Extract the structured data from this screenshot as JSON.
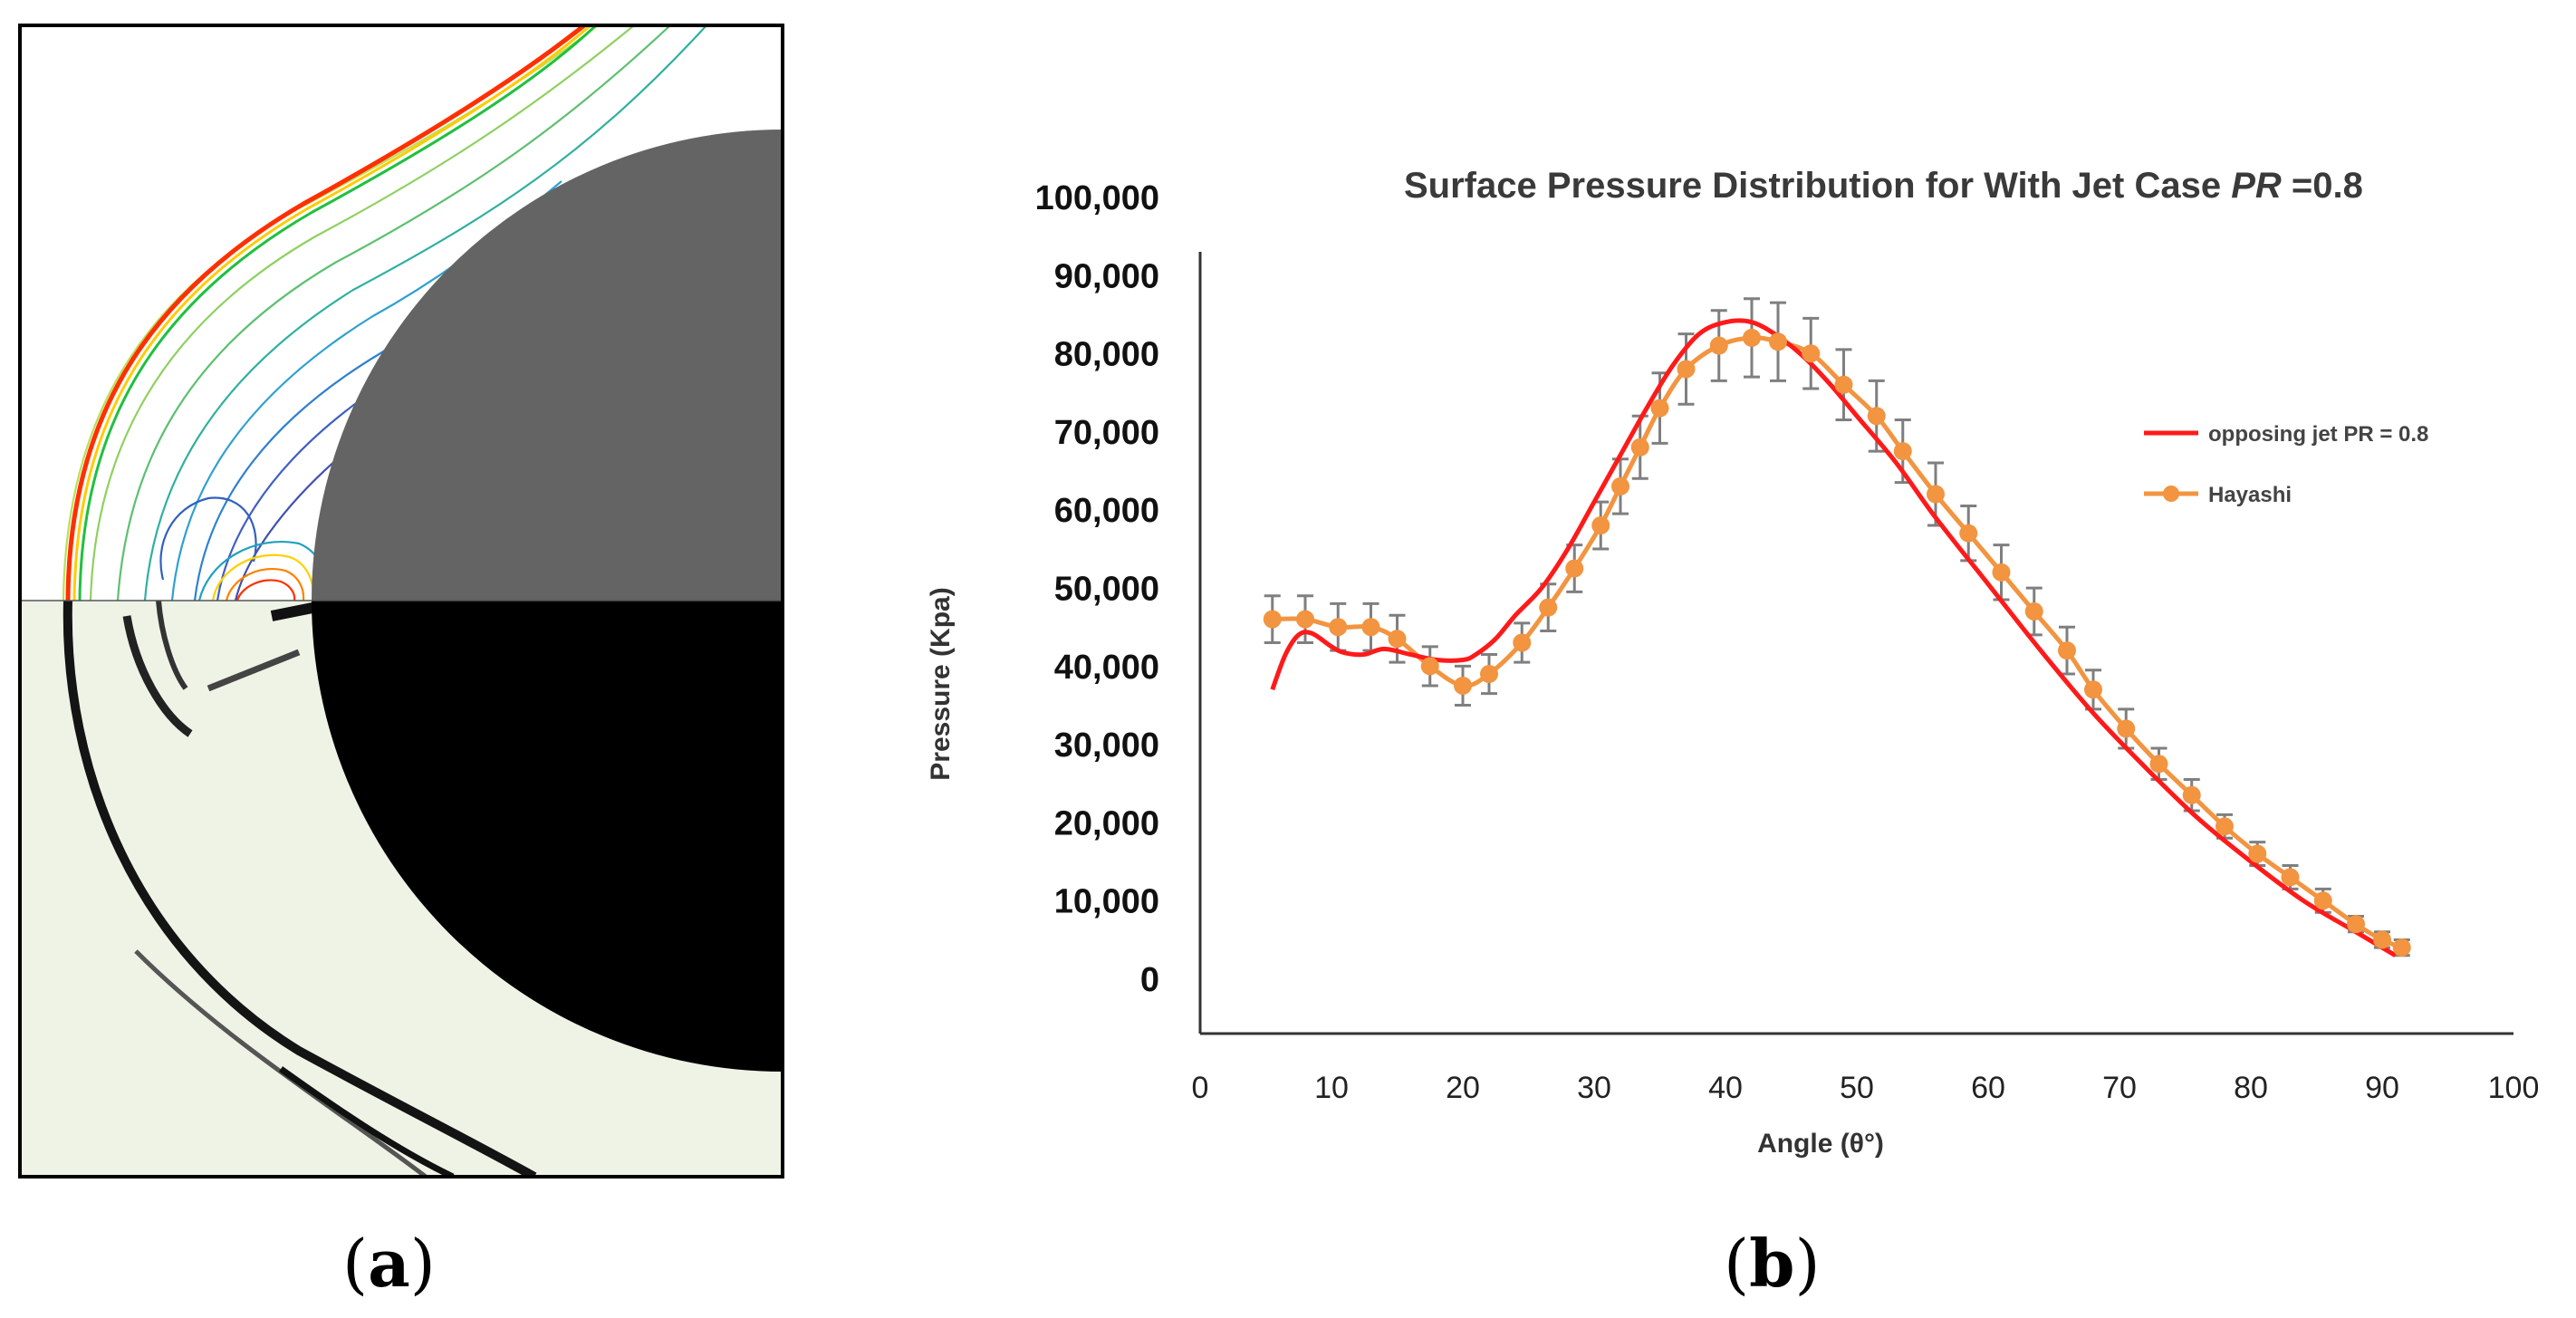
{
  "panels": {
    "a_label": "a",
    "b_label": "b"
  },
  "colors": {
    "cfd_line": "#ff1a1a",
    "hayashi": "#f29440",
    "error_bar": "#7f7f7f",
    "body_gray": "#646464",
    "body_black": "#000000"
  },
  "chart_data": {
    "type": "line",
    "title_main": "Surface Pressure Distribution for With Jet Case ",
    "title_italic": "PR",
    "title_tail": " =0.8",
    "xlabel": "Angle (θ°)",
    "ylabel": "Pressure (Kpa)",
    "xlim": [
      0,
      100
    ],
    "ylim": [
      0,
      100000
    ],
    "x_ticks": [
      "0",
      "10",
      "20",
      "30",
      "40",
      "50",
      "60",
      "70",
      "80",
      "90",
      "100"
    ],
    "y_ticks": [
      "0",
      "10,000",
      "20,000",
      "30,000",
      "40,000",
      "50,000",
      "60,000",
      "70,000",
      "80,000",
      "90,000",
      "100,000"
    ],
    "grid": false,
    "legend_position": "right",
    "series": [
      {
        "name": "opposing jet PR = 0.8",
        "style": "line",
        "x": [
          5.5,
          6.5,
          7.5,
          8.5,
          10,
          11,
          12.5,
          14,
          16,
          18,
          20,
          21,
          22.5,
          24,
          26,
          28,
          30,
          32,
          34,
          36,
          38,
          40,
          42,
          44,
          46,
          48,
          50,
          53,
          56,
          60,
          64,
          68,
          72,
          76,
          80,
          84,
          88,
          91
        ],
        "y": [
          44000,
          48500,
          51000,
          51200,
          49500,
          48700,
          48500,
          49200,
          48500,
          47800,
          47800,
          48500,
          50500,
          53500,
          57000,
          62000,
          68000,
          74000,
          80000,
          85500,
          89500,
          91000,
          91000,
          89200,
          86500,
          83000,
          79000,
          73000,
          66000,
          57500,
          49000,
          41000,
          34000,
          27500,
          22000,
          17000,
          13000,
          10000
        ]
      },
      {
        "name": "Hayashi",
        "style": "markers-line",
        "x": [
          5.5,
          8,
          10.5,
          13,
          15,
          17.5,
          20,
          22,
          24.5,
          26.5,
          28.5,
          30.5,
          32,
          33.5,
          35,
          37,
          39.5,
          42,
          44,
          46.5,
          49,
          51.5,
          53.5,
          56,
          58.5,
          61,
          63.5,
          66,
          68,
          70.5,
          73,
          75.5,
          78,
          80.5,
          83,
          85.5,
          88,
          90,
          91.5
        ],
        "y": [
          53000,
          53000,
          52000,
          52000,
          50500,
          47000,
          44500,
          46000,
          50000,
          54500,
          59500,
          65000,
          70000,
          75000,
          80000,
          85000,
          88000,
          89000,
          88500,
          87000,
          83000,
          79000,
          74500,
          69000,
          64000,
          59000,
          54000,
          49000,
          44000,
          39000,
          34500,
          30500,
          26500,
          23000,
          20000,
          17000,
          14000,
          12000,
          11000
        ],
        "error": [
          3000,
          3000,
          3000,
          3000,
          3000,
          2500,
          2500,
          2500,
          2500,
          3000,
          3000,
          3000,
          3500,
          4000,
          4500,
          4500,
          4500,
          5000,
          5000,
          4500,
          4500,
          4500,
          4000,
          4000,
          3500,
          3500,
          3000,
          3000,
          2500,
          2500,
          2000,
          2000,
          1500,
          1500,
          1500,
          1500,
          1000,
          1000,
          1000
        ]
      }
    ]
  }
}
